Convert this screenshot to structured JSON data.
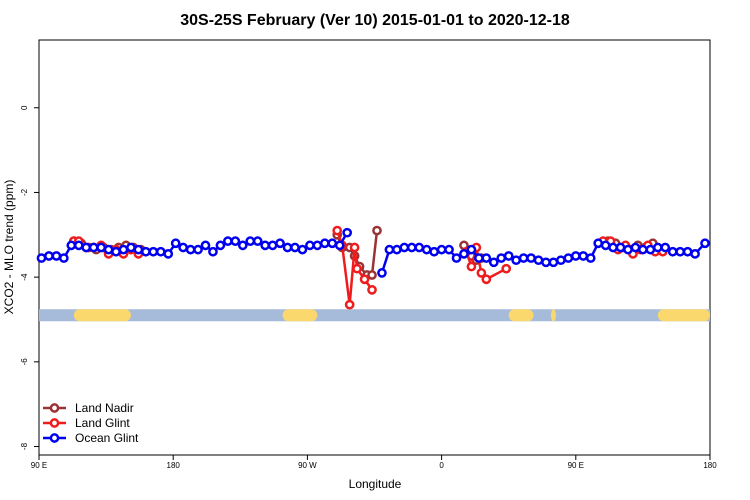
{
  "chart_data": {
    "type": "line",
    "title": "30S-25S February (Ver 10)   2015-01-01 to 2020-12-18",
    "xlabel": "Longitude",
    "ylabel": "XCO2 - MLO trend (ppm)",
    "xlim": [
      -90,
      180
    ],
    "ylim": [
      -8.2,
      1.6
    ],
    "x_ticks": [
      {
        "value": -90,
        "label": "90 E"
      },
      {
        "value": -36,
        "label": "180"
      },
      {
        "value": 18,
        "label": "90 W"
      },
      {
        "value": 72,
        "label": "0"
      },
      {
        "value": 126,
        "label": "90 E"
      },
      {
        "value": 180,
        "label": "180"
      }
    ],
    "y_ticks": [
      {
        "value": 0,
        "label": "0"
      },
      {
        "value": -2,
        "label": "-2"
      },
      {
        "value": -4,
        "label": "-4"
      },
      {
        "value": -6,
        "label": "-6"
      },
      {
        "value": -8,
        "label": "-8"
      }
    ],
    "grid": false,
    "legend_position": "bottom-left",
    "surface_band": {
      "y": -4.9,
      "ocean_color": "#a5bbd9",
      "land_color": "#fad86e",
      "land_x_ranges": [
        [
          -76,
          -53
        ],
        [
          8,
          22
        ],
        [
          99,
          109
        ],
        [
          159,
          182
        ],
        [
          116,
          118
        ]
      ]
    },
    "series": [
      {
        "name": "Land Nadir",
        "color": "#9a3334",
        "fill": "#ffffff",
        "segments": [
          [
            [
              -76,
              -3.15
            ],
            [
              -73,
              -3.2
            ],
            [
              -70,
              -3.3
            ],
            [
              -67,
              -3.35
            ],
            [
              -64,
              -3.3
            ],
            [
              -61,
              -3.35
            ],
            [
              -58,
              -3.3
            ],
            [
              -55,
              -3.25
            ],
            [
              -52,
              -3.3
            ],
            [
              -49,
              -3.35
            ]
          ],
          [
            [
              30,
              -3.0
            ],
            [
              32,
              -3.3
            ],
            [
              35,
              -3.3
            ],
            [
              37,
              -3.5
            ],
            [
              39,
              -3.75
            ],
            [
              42,
              -3.95
            ],
            [
              44,
              -3.95
            ],
            [
              46,
              -2.9
            ]
          ],
          [
            [
              81,
              -3.25
            ],
            [
              84,
              -3.5
            ],
            [
              86,
              -3.6
            ],
            [
              88,
              -3.55
            ]
          ],
          [
            [
              139,
              -3.15
            ],
            [
              142,
              -3.2
            ],
            [
              145,
              -3.3
            ],
            [
              148,
              -3.35
            ],
            [
              151,
              -3.25
            ],
            [
              154,
              -3.3
            ],
            [
              157,
              -3.2
            ]
          ]
        ]
      },
      {
        "name": "Land Glint",
        "color": "#ee1c1c",
        "fill": "#ffffff",
        "segments": [
          [
            [
              -76,
              -3.15
            ],
            [
              -74,
              -3.15
            ],
            [
              -71,
              -3.3
            ],
            [
              -68,
              -3.3
            ],
            [
              -65,
              -3.25
            ],
            [
              -62,
              -3.45
            ],
            [
              -59,
              -3.35
            ],
            [
              -56,
              -3.45
            ],
            [
              -53,
              -3.35
            ],
            [
              -50,
              -3.45
            ]
          ],
          [
            [
              30,
              -2.9
            ],
            [
              32,
              -3.25
            ],
            [
              35,
              -4.65
            ],
            [
              37,
              -3.3
            ],
            [
              38,
              -3.8
            ],
            [
              41,
              -4.05
            ],
            [
              44,
              -4.3
            ]
          ],
          [
            [
              82,
              -3.4
            ],
            [
              84,
              -3.75
            ],
            [
              86,
              -3.3
            ],
            [
              88,
              -3.9
            ],
            [
              90,
              -4.05
            ],
            [
              98,
              -3.8
            ]
          ],
          [
            [
              137,
              -3.15
            ],
            [
              140,
              -3.15
            ],
            [
              143,
              -3.35
            ],
            [
              146,
              -3.25
            ],
            [
              149,
              -3.45
            ],
            [
              152,
              -3.35
            ],
            [
              155,
              -3.25
            ],
            [
              158,
              -3.4
            ],
            [
              161,
              -3.4
            ]
          ]
        ]
      },
      {
        "name": "Ocean Glint",
        "color": "#0000ee",
        "fill": "#ffffff",
        "segments": [
          [
            [
              -89,
              -3.55
            ],
            [
              -86,
              -3.5
            ],
            [
              -83,
              -3.5
            ],
            [
              -80,
              -3.55
            ],
            [
              -77,
              -3.25
            ],
            [
              -74,
              -3.25
            ],
            [
              -71,
              -3.3
            ],
            [
              -68,
              -3.3
            ],
            [
              -65,
              -3.3
            ],
            [
              -62,
              -3.35
            ],
            [
              -59,
              -3.4
            ],
            [
              -56,
              -3.35
            ],
            [
              -53,
              -3.3
            ],
            [
              -50,
              -3.35
            ],
            [
              -47,
              -3.4
            ],
            [
              -44,
              -3.4
            ],
            [
              -41,
              -3.4
            ],
            [
              -38,
              -3.45
            ],
            [
              -35,
              -3.2
            ],
            [
              -32,
              -3.3
            ],
            [
              -29,
              -3.35
            ],
            [
              -26,
              -3.35
            ],
            [
              -23,
              -3.25
            ],
            [
              -20,
              -3.4
            ],
            [
              -17,
              -3.25
            ],
            [
              -14,
              -3.15
            ],
            [
              -11,
              -3.15
            ],
            [
              -8,
              -3.25
            ],
            [
              -5,
              -3.15
            ],
            [
              -2,
              -3.15
            ],
            [
              1,
              -3.25
            ],
            [
              4,
              -3.25
            ],
            [
              7,
              -3.2
            ],
            [
              10,
              -3.3
            ],
            [
              13,
              -3.3
            ],
            [
              16,
              -3.35
            ],
            [
              19,
              -3.25
            ],
            [
              22,
              -3.25
            ],
            [
              25,
              -3.2
            ],
            [
              28,
              -3.2
            ],
            [
              31,
              -3.25
            ],
            [
              34,
              -2.95
            ]
          ],
          [
            [
              48,
              -3.9
            ],
            [
              51,
              -3.35
            ],
            [
              54,
              -3.35
            ],
            [
              57,
              -3.3
            ],
            [
              60,
              -3.3
            ],
            [
              63,
              -3.3
            ],
            [
              66,
              -3.35
            ],
            [
              69,
              -3.4
            ],
            [
              72,
              -3.35
            ],
            [
              75,
              -3.35
            ],
            [
              78,
              -3.55
            ],
            [
              81,
              -3.45
            ],
            [
              84,
              -3.35
            ],
            [
              87,
              -3.55
            ],
            [
              90,
              -3.55
            ],
            [
              93,
              -3.65
            ],
            [
              96,
              -3.55
            ],
            [
              99,
              -3.5
            ],
            [
              102,
              -3.6
            ],
            [
              105,
              -3.55
            ],
            [
              108,
              -3.55
            ],
            [
              111,
              -3.6
            ],
            [
              114,
              -3.65
            ],
            [
              117,
              -3.65
            ],
            [
              120,
              -3.6
            ],
            [
              123,
              -3.55
            ],
            [
              126,
              -3.5
            ],
            [
              129,
              -3.5
            ],
            [
              132,
              -3.55
            ],
            [
              135,
              -3.2
            ],
            [
              138,
              -3.25
            ],
            [
              141,
              -3.3
            ],
            [
              144,
              -3.3
            ],
            [
              147,
              -3.35
            ],
            [
              150,
              -3.3
            ],
            [
              153,
              -3.35
            ],
            [
              156,
              -3.35
            ],
            [
              159,
              -3.3
            ],
            [
              162,
              -3.3
            ],
            [
              165,
              -3.4
            ],
            [
              168,
              -3.4
            ],
            [
              171,
              -3.4
            ],
            [
              174,
              -3.45
            ],
            [
              178,
              -3.2
            ]
          ]
        ]
      }
    ]
  }
}
